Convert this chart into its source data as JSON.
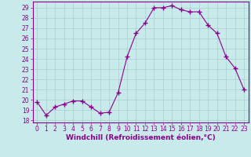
{
  "x": [
    0,
    1,
    2,
    3,
    4,
    5,
    6,
    7,
    8,
    9,
    10,
    11,
    12,
    13,
    14,
    15,
    16,
    17,
    18,
    19,
    20,
    21,
    22,
    23
  ],
  "y": [
    19.8,
    18.5,
    19.3,
    19.6,
    19.9,
    19.9,
    19.3,
    18.7,
    18.8,
    20.7,
    24.2,
    26.5,
    27.5,
    29.0,
    29.0,
    29.2,
    28.8,
    28.6,
    28.6,
    27.3,
    26.5,
    24.2,
    23.1,
    21.0
  ],
  "line_color": "#8B008B",
  "marker": "+",
  "marker_size": 4,
  "background_color": "#c8eaea",
  "grid_color": "#a8cece",
  "xlabel": "Windchill (Refroidissement éolien,°C)",
  "ylim": [
    17.8,
    29.6
  ],
  "xlim": [
    -0.5,
    23.5
  ],
  "yticks": [
    18,
    19,
    20,
    21,
    22,
    23,
    24,
    25,
    26,
    27,
    28,
    29
  ],
  "xticks": [
    0,
    1,
    2,
    3,
    4,
    5,
    6,
    7,
    8,
    9,
    10,
    11,
    12,
    13,
    14,
    15,
    16,
    17,
    18,
    19,
    20,
    21,
    22,
    23
  ],
  "tick_color": "#8B008B",
  "label_color": "#8B008B",
  "spine_color": "#8B008B",
  "tick_fontsize": 5.5,
  "xlabel_fontsize": 6.5
}
